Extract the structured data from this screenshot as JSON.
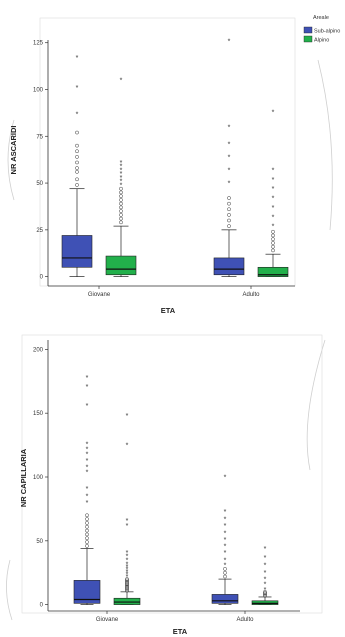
{
  "colors": {
    "sub_alpino": "#3f51b5",
    "alpino": "#22b04b"
  },
  "legend": {
    "title": "Areale",
    "items": [
      "Sub-alpino",
      "Alpino"
    ]
  },
  "chart_data": [
    {
      "type": "box",
      "ylabel": "NR ASCARIDI",
      "xlabel": "ETA",
      "categories": [
        "Giovane",
        "Adulto"
      ],
      "ylim": [
        -5,
        135
      ],
      "yticks": [
        0,
        25,
        50,
        75,
        100,
        125
      ],
      "series": [
        {
          "name": "Sub-alpino",
          "boxes": [
            {
              "category": "Giovane",
              "whisker_low": 0,
              "q1": 5,
              "median": 10,
              "q3": 22,
              "whisker_high": 47,
              "circle_outliers": [
                49,
                52,
                56,
                58,
                61,
                64,
                67,
                70,
                77
              ],
              "star_outliers": [
                87,
                101,
                117
              ]
            },
            {
              "category": "Adulto",
              "whisker_low": 0,
              "q1": 1,
              "median": 4,
              "q3": 10,
              "whisker_high": 25,
              "circle_outliers": [
                27,
                30,
                33,
                36,
                39,
                42
              ],
              "star_outliers": [
                50,
                57,
                64,
                71,
                80,
                126
              ]
            }
          ]
        },
        {
          "name": "Alpino",
          "boxes": [
            {
              "category": "Giovane",
              "whisker_low": 0,
              "q1": 1,
              "median": 4,
              "q3": 11,
              "whisker_high": 27,
              "circle_outliers": [
                29,
                31,
                33,
                35,
                37,
                39,
                41,
                43,
                45,
                47
              ],
              "star_outliers": [
                49,
                51,
                53,
                55,
                57,
                59,
                61,
                105
              ]
            },
            {
              "category": "Adulto",
              "whisker_low": 0,
              "q1": 0,
              "median": 1,
              "q3": 5,
              "whisker_high": 12,
              "circle_outliers": [
                14,
                16,
                18,
                20,
                22,
                24
              ],
              "star_outliers": [
                27,
                32,
                37,
                42,
                47,
                52,
                57,
                88
              ]
            }
          ]
        }
      ]
    },
    {
      "type": "box",
      "ylabel": "NR CAPILLARIA",
      "xlabel": "ETA",
      "categories": [
        "Giovane",
        "Adulto"
      ],
      "ylim": [
        -5,
        205
      ],
      "yticks": [
        0,
        50,
        100,
        150,
        200
      ],
      "series": [
        {
          "name": "Sub-alpino",
          "boxes": [
            {
              "category": "Giovane",
              "whisker_low": 0,
              "q1": 1,
              "median": 4,
              "q3": 19,
              "whisker_high": 44,
              "circle_outliers": [
                46,
                49,
                52,
                55,
                58,
                61,
                64,
                67,
                70
              ],
              "star_outliers": [
                80,
                85,
                91,
                104,
                108,
                113,
                118,
                122,
                126,
                156,
                171,
                178
              ]
            },
            {
              "category": "Adulto",
              "whisker_low": 0,
              "q1": 1,
              "median": 3,
              "q3": 8,
              "whisker_high": 20,
              "circle_outliers": [
                22,
                25,
                28
              ],
              "star_outliers": [
                31,
                35,
                41,
                46,
                51,
                56,
                62,
                67,
                73,
                100
              ]
            }
          ]
        },
        {
          "name": "Alpino",
          "boxes": [
            {
              "category": "Giovane",
              "whisker_low": 0,
              "q1": 0,
              "median": 2,
              "q3": 5,
              "whisker_high": 10,
              "circle_outliers": [
                11,
                12,
                13,
                14,
                15,
                16,
                17,
                18,
                19,
                20
              ],
              "star_outliers": [
                22,
                24,
                26,
                28,
                30,
                32,
                35,
                38,
                41,
                62,
                66,
                125,
                148
              ]
            },
            {
              "category": "Adulto",
              "whisker_low": 0,
              "q1": 0,
              "median": 1,
              "q3": 3,
              "whisker_high": 6,
              "circle_outliers": [
                7,
                8,
                9,
                10
              ],
              "star_outliers": [
                12,
                16,
                20,
                25,
                31,
                37,
                44
              ]
            }
          ]
        }
      ]
    }
  ]
}
